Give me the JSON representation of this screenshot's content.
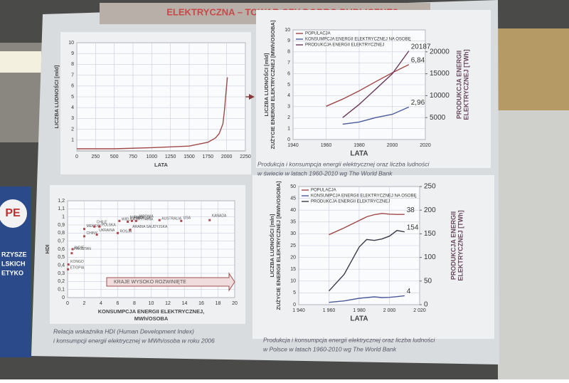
{
  "title": "ELEKTRYCZNA – TOWAR CZY DOBRO PUBLICZNE?",
  "banner": [
    "PE",
    "RZYSZE",
    "LSKICH",
    "ETYKO"
  ],
  "chart_data": [
    {
      "type": "line",
      "x_label": [
        "LATA"
      ],
      "y_label": [
        "LICZBA LUDNOŚCI [mld]"
      ],
      "x": [
        0,
        500,
        1000,
        1500,
        1750,
        1850,
        1900,
        1950,
        1970,
        1990,
        2000,
        2010
      ],
      "series": [
        {
          "color": "#a04848",
          "values": [
            0.2,
            0.2,
            0.3,
            0.45,
            0.8,
            1.2,
            1.6,
            2.5,
            3.7,
            5.3,
            6.1,
            6.8
          ]
        }
      ],
      "xlim": [
        0,
        2250
      ],
      "xticks": [
        0,
        250,
        500,
        750,
        1000,
        1250,
        1500,
        1750,
        2000,
        2250
      ],
      "ylim": [
        0,
        10
      ],
      "yticks": [
        1,
        2,
        3,
        4,
        5,
        6,
        7,
        8,
        9,
        10
      ],
      "grid": true
    },
    {
      "type": "line",
      "x_label": [
        "LATA"
      ],
      "y_label": [
        "LICZBA LUDNOŚCI [mld]",
        "ZUŻYCIE ENERGII ELEKTRYCZNEJ [MWh/OSOBA]"
      ],
      "y2_label": [
        "PRODUKCJA ENERGII",
        "ELEKTRYCZNEJ [TWh]"
      ],
      "x": [
        1960,
        1970,
        1980,
        1990,
        2000,
        2010
      ],
      "series": [
        {
          "name": "POPULACJA",
          "color": "#a04848",
          "values": [
            3.03,
            3.69,
            4.44,
            5.28,
            6.09,
            6.84
          ],
          "value_labels": [
            null,
            null,
            null,
            null,
            null,
            "6,84"
          ]
        },
        {
          "name": "KONSUMPCJA ENERGII ELEKTRYCZNEJ NA OSOBĘ",
          "color": "#4a5a9a",
          "values": [
            null,
            1.4,
            1.6,
            2.0,
            2.3,
            2.96
          ],
          "value_labels": [
            null,
            null,
            null,
            null,
            null,
            "2,96"
          ]
        },
        {
          "name": "PRODUKCJA ENERGII ELEKTRYCZNEJ",
          "color": "#6a3a5a",
          "axis": "y2",
          "values": [
            null,
            5000,
            8000,
            11500,
            15000,
            20187
          ],
          "value_labels": [
            null,
            null,
            null,
            null,
            null,
            "20187"
          ]
        }
      ],
      "xlim": [
        1940,
        2020
      ],
      "xticks": [
        1940,
        1960,
        1980,
        2000,
        2020
      ],
      "ylim": [
        0,
        10
      ],
      "yticks": [
        0,
        1,
        2,
        3,
        4,
        5,
        6,
        7,
        8,
        9,
        10
      ],
      "y2lim": [
        0,
        25000
      ],
      "y2ticks": [
        5000,
        10000,
        15000,
        20000
      ],
      "grid": true,
      "caption": [
        "Produkcja i konsumpcja energii elektrycznej oraz liczba ludności",
        "w świecie w latach 1960-2010 wg The World Bank"
      ]
    },
    {
      "type": "scatter",
      "x_label": [
        "KONSUMPCJA ENERGII ELEKTRYCZNEJ,",
        "MWh/OSOBA"
      ],
      "y_label": [
        "HDI"
      ],
      "categories": [
        "ETIOPIA",
        "KONGO",
        "PAKISTAN",
        "INDIE",
        "CHINY",
        "UKRAINA",
        "ROSJA",
        "MEKSYK",
        "CHILE",
        "POLSKA",
        "ARABIA SAUDYJSKA",
        "NIEMCY",
        "WIELKA BRYTANIA",
        "FRANCJA",
        "JAPONIA",
        "AUSTRALIA",
        "USA",
        "KANADA"
      ],
      "x": [
        0.05,
        0.1,
        0.5,
        0.6,
        2.0,
        3.5,
        6.0,
        2.0,
        3.2,
        3.8,
        7.5,
        7.2,
        6.2,
        7.7,
        8.2,
        11,
        13.6,
        17
      ],
      "values": [
        0.35,
        0.41,
        0.55,
        0.6,
        0.76,
        0.78,
        0.8,
        0.85,
        0.88,
        0.88,
        0.84,
        0.94,
        0.95,
        0.95,
        0.95,
        0.96,
        0.95,
        0.96
      ],
      "color": "#b04850",
      "xlim": [
        0,
        20
      ],
      "xticks": [
        0,
        2,
        4,
        6,
        8,
        10,
        12,
        14,
        16,
        18,
        20
      ],
      "ylim": [
        0,
        1.2
      ],
      "yticks": [
        0,
        {
          "value": 0.1,
          "label": "0,1"
        },
        {
          "value": 0.2,
          "label": "0,2"
        },
        {
          "value": 0.3,
          "label": "0,3"
        },
        {
          "value": 0.4,
          "label": "0,4"
        },
        {
          "value": 0.5,
          "label": "0,5"
        },
        {
          "value": 0.6,
          "label": "0,6"
        },
        {
          "value": 0.7,
          "label": "0,7"
        },
        {
          "value": 0.8,
          "label": "0,8"
        },
        {
          "value": 0.9,
          "label": "0,9"
        },
        1,
        {
          "value": 1.1,
          "label": "1,1"
        },
        {
          "value": 1.2,
          "label": "1,2"
        }
      ],
      "grid": true,
      "annotation": "KRAJE WYSOKO ROZWINIĘTE",
      "caption": [
        "Relacja wskaźnika HDI (Human Development Index)",
        "i konsumpcji energii elektrycznej w MWh/osoba w roku 2006"
      ]
    },
    {
      "type": "line",
      "x_label": [
        "LATA"
      ],
      "y_label": [
        "LICZBA LUDNOŚCI [mln]",
        "ZUŻYCIE ENERGII ELEKTRYCZNEJ [MWh/OSOBA]"
      ],
      "y2_label": [
        "PRODUKCJA ENERGII",
        "ELEKTRYCZNEJ [TWh]"
      ],
      "x": [
        1960,
        1970,
        1980,
        1985,
        1990,
        1995,
        2000,
        2005,
        2010
      ],
      "series": [
        {
          "name": "POPULACJA",
          "color": "#a04848",
          "values": [
            29.6,
            32.5,
            35.6,
            37.2,
            38.1,
            38.6,
            38.3,
            38.2,
            38.2
          ],
          "value_labels": [
            null,
            null,
            null,
            null,
            null,
            null,
            null,
            null,
            "38"
          ]
        },
        {
          "name": "KONSUMPCJA ENERGII ELEKTRYCZNEJ NA OSOBĘ",
          "color": "#4a5a9a",
          "values": [
            1.0,
            1.6,
            2.7,
            3.0,
            3.3,
            3.0,
            3.1,
            3.4,
            3.8
          ],
          "value_labels": [
            null,
            null,
            null,
            null,
            null,
            null,
            null,
            null,
            "4"
          ]
        },
        {
          "name": "PRODUKCJA ENERGII ELEKTRYCZNEJ",
          "color": "#3a3a4a",
          "axis": "y2",
          "values": [
            29,
            64,
            122,
            138,
            136,
            139,
            145,
            157,
            154
          ],
          "value_labels": [
            null,
            null,
            null,
            null,
            null,
            null,
            null,
            null,
            "154"
          ]
        }
      ],
      "xlim": [
        1940,
        2020
      ],
      "xticks": [
        {
          "value": 1940,
          "label": "1 940"
        },
        {
          "value": 1960,
          "label": "1 960"
        },
        {
          "value": 1980,
          "label": "1 980"
        },
        {
          "value": 2000,
          "label": "2 000"
        },
        {
          "value": 2020,
          "label": "2 020"
        }
      ],
      "ylim": [
        0,
        50
      ],
      "yticks": [
        0,
        5,
        10,
        15,
        20,
        25,
        30,
        35,
        40,
        45,
        50
      ],
      "y2lim": [
        0,
        250
      ],
      "y2ticks": [
        0,
        50,
        100,
        150,
        200,
        250
      ],
      "grid": true,
      "caption": [
        "Produkcja i konsumpcja energii elektrycznej oraz liczba ludności",
        "w Polsce w latach 1960-2010 wg The World Bank"
      ]
    }
  ]
}
